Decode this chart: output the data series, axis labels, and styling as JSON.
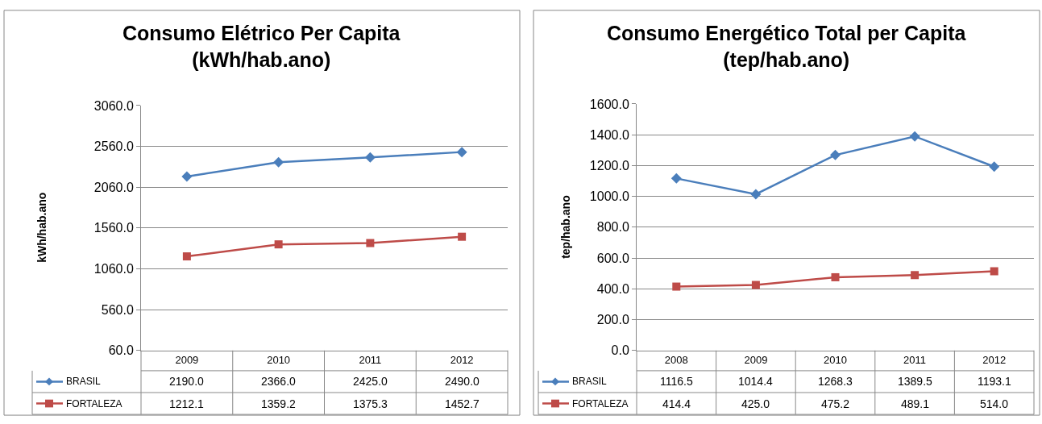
{
  "chart_data": [
    {
      "type": "line",
      "title": "Consumo Elétrico Per Capita\n(kWh/hab.ano)",
      "ylabel": "kWh/hab.ano",
      "categories": [
        "2009",
        "2010",
        "2011",
        "2012"
      ],
      "ylim": [
        60,
        3060
      ],
      "yticks": [
        {
          "value": 60,
          "label": "60.0"
        },
        {
          "value": 560,
          "label": "560.0"
        },
        {
          "value": 1060,
          "label": "1060.0"
        },
        {
          "value": 1560,
          "label": "1560.0"
        },
        {
          "value": 2060,
          "label": "2060.0"
        },
        {
          "value": 2560,
          "label": "2560.0"
        },
        {
          "value": 3060,
          "label": "3060.0"
        }
      ],
      "grid": "y",
      "legend": "bottom",
      "series": [
        {
          "name": "BRASIL",
          "color": "#4a7ebb",
          "marker": "diamond",
          "values": [
            2190.0,
            2366.0,
            2425.0,
            2490.0
          ],
          "value_labels": [
            "2190.0",
            "2366.0",
            "2425.0",
            "2490.0"
          ]
        },
        {
          "name": "FORTALEZA",
          "color": "#be4b48",
          "marker": "square",
          "values": [
            1212.1,
            1359.2,
            1375.3,
            1452.7
          ],
          "value_labels": [
            "1212.1",
            "1359.2",
            "1375.3",
            "1452.7"
          ]
        }
      ]
    },
    {
      "type": "line",
      "title": "Consumo Energético Total per Capita\n(tep/hab.ano)",
      "ylabel": "tep/hab.ano",
      "categories": [
        "2008",
        "2009",
        "2010",
        "2011",
        "2012"
      ],
      "ylim": [
        0,
        1600
      ],
      "yticks": [
        {
          "value": 0,
          "label": "0.0"
        },
        {
          "value": 200,
          "label": "200.0"
        },
        {
          "value": 400,
          "label": "400.0"
        },
        {
          "value": 600,
          "label": "600.0"
        },
        {
          "value": 800,
          "label": "800.0"
        },
        {
          "value": 1000,
          "label": "1000.0"
        },
        {
          "value": 1200,
          "label": "1200.0"
        },
        {
          "value": 1400,
          "label": "1400.0"
        },
        {
          "value": 1600,
          "label": "1600.0"
        }
      ],
      "grid": "y",
      "legend": "bottom",
      "series": [
        {
          "name": "BRASIL",
          "color": "#4a7ebb",
          "marker": "diamond",
          "values": [
            1116.5,
            1014.4,
            1268.3,
            1389.5,
            1193.1
          ],
          "value_labels": [
            "1116.5",
            "1014.4",
            "1268.3",
            "1389.5",
            "1193.1"
          ]
        },
        {
          "name": "FORTALEZA",
          "color": "#be4b48",
          "marker": "square",
          "values": [
            414.4,
            425.0,
            475.2,
            489.1,
            514.0
          ],
          "value_labels": [
            "414.4",
            "425.0",
            "475.2",
            "489.1",
            "514.0"
          ]
        }
      ]
    }
  ]
}
